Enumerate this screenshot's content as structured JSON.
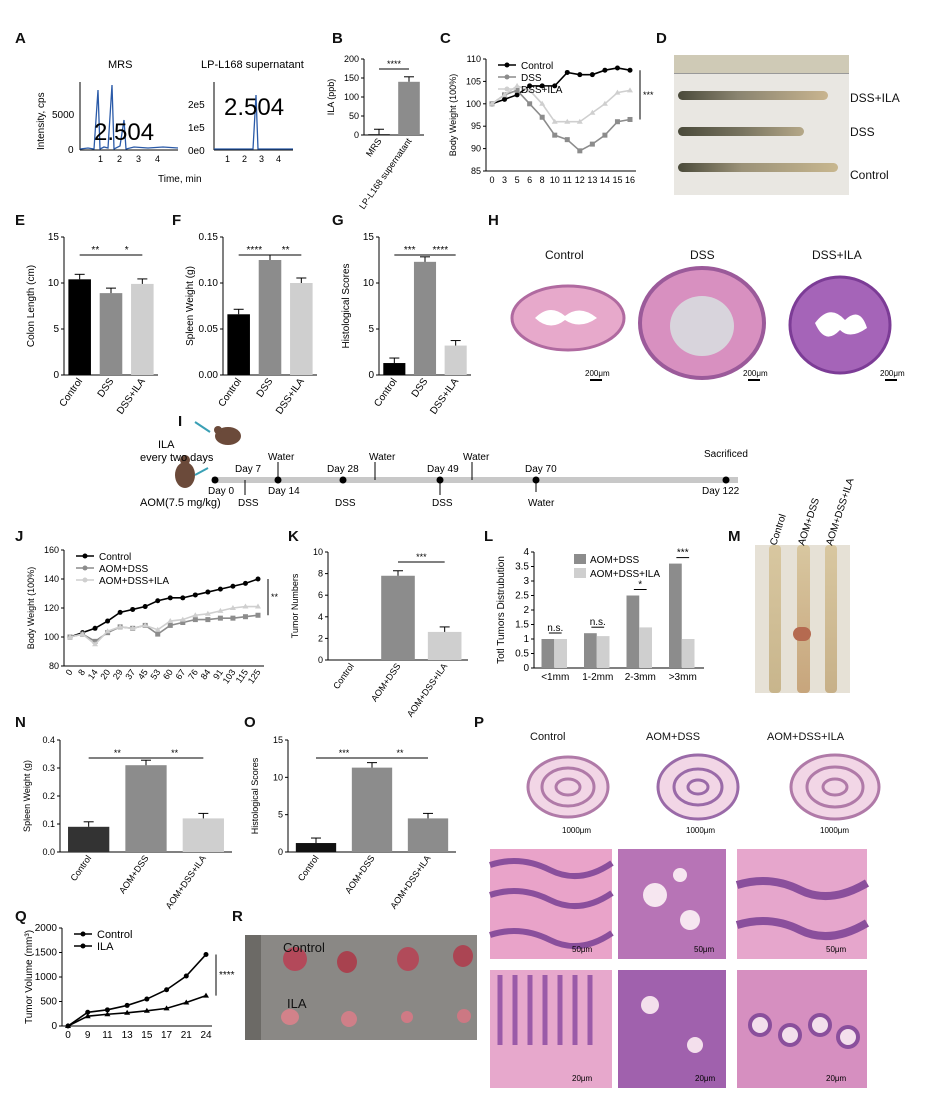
{
  "labels": {
    "A": "A",
    "B": "B",
    "C": "C",
    "D": "D",
    "E": "E",
    "F": "F",
    "G": "G",
    "H": "H",
    "I": "I",
    "J": "J",
    "K": "K",
    "L": "L",
    "M": "M",
    "N": "N",
    "O": "O",
    "P": "P",
    "Q": "Q",
    "R": "R"
  },
  "colors": {
    "black": "#000000",
    "darkgray": "#8c8c8c",
    "lightgray": "#cfcfcf",
    "he_pink": "#e8a6c8",
    "he_purple": "#8a4fa0"
  },
  "panelA": {
    "left_title": "MRS",
    "right_title": "LP-L168 supernatant",
    "ylabel": "Intensity, cps",
    "xlabel": "Time, min",
    "peak_text": "2.504",
    "left_yticks": [
      "5000",
      "0"
    ],
    "right_yticks": [
      "2e5",
      "1e5",
      "0e0"
    ],
    "xticks": [
      "1",
      "2",
      "3",
      "4"
    ]
  },
  "chart_data": [
    {
      "id": "B",
      "type": "bar",
      "ylabel": "ILA (ppb)",
      "categories": [
        "MRS",
        "LP-L168 supernatant"
      ],
      "values": [
        2,
        140
      ],
      "ylim": [
        0,
        200
      ],
      "yticks": [
        "0",
        "50",
        "100",
        "150",
        "200"
      ],
      "sig": "****"
    },
    {
      "id": "C",
      "type": "line",
      "ylabel": "Body Weight (100%)",
      "x": [
        "0",
        "3",
        "5",
        "6",
        "8",
        "10",
        "11",
        "12",
        "13",
        "14",
        "15",
        "16"
      ],
      "ylim": [
        85,
        110
      ],
      "yticks": [
        "85",
        "90",
        "95",
        "100",
        "105",
        "110"
      ],
      "series": [
        {
          "name": "Control",
          "values": [
            100,
            101,
            102,
            104,
            104,
            104,
            107,
            106.5,
            106.5,
            107.5,
            108,
            107.5
          ]
        },
        {
          "name": "DSS",
          "values": [
            100,
            102,
            103,
            100,
            97,
            93,
            92,
            89.5,
            91,
            93,
            96,
            96.5
          ]
        },
        {
          "name": "DSS+ILA",
          "values": [
            100,
            102,
            104,
            103,
            100,
            96,
            96,
            96,
            98,
            100,
            102.5,
            103
          ]
        }
      ],
      "sig": "***"
    },
    {
      "id": "E",
      "type": "bar",
      "ylabel": "Colon Length (cm)",
      "categories": [
        "Control",
        "DSS",
        "DSS+ILA"
      ],
      "values": [
        10.4,
        8.9,
        9.9
      ],
      "ylim": [
        0,
        15
      ],
      "yticks": [
        "0",
        "5",
        "10",
        "15"
      ],
      "sigs": [
        "**",
        "*"
      ]
    },
    {
      "id": "F",
      "type": "bar",
      "ylabel": "Spleen Weight (g)",
      "categories": [
        "Control",
        "DSS",
        "DSS+ILA"
      ],
      "values": [
        0.066,
        0.125,
        0.1
      ],
      "ylim": [
        0,
        0.15
      ],
      "yticks": [
        "0.00",
        "0.05",
        "0.10",
        "0.15"
      ],
      "sigs": [
        "****",
        "**"
      ]
    },
    {
      "id": "G",
      "type": "bar",
      "ylabel": "Histological Scores",
      "categories": [
        "Control",
        "DSS",
        "DSS+ILA"
      ],
      "values": [
        1.3,
        12.3,
        3.2
      ],
      "ylim": [
        0,
        15
      ],
      "yticks": [
        "0",
        "5",
        "10",
        "15"
      ],
      "sigs": [
        "***",
        "****"
      ]
    },
    {
      "id": "J",
      "type": "line",
      "ylabel": "Body Weight (100%)",
      "x": [
        "0",
        "8",
        "14",
        "20",
        "29",
        "37",
        "45",
        "53",
        "60",
        "67",
        "76",
        "84",
        "91",
        "103",
        "115",
        "125"
      ],
      "ylim": [
        80,
        160
      ],
      "yticks": [
        "80",
        "100",
        "120",
        "140",
        "160"
      ],
      "series": [
        {
          "name": "Control",
          "values": [
            100,
            103,
            106,
            111,
            117,
            119,
            121,
            125,
            127,
            127,
            129,
            131,
            133,
            135,
            137,
            140
          ]
        },
        {
          "name": "AOM+DSS",
          "values": [
            100,
            102,
            97,
            103,
            107,
            106,
            108,
            102,
            108,
            110,
            112,
            112,
            113,
            113,
            114,
            115
          ]
        },
        {
          "name": "AOM+DSS+ILA",
          "values": [
            100,
            102,
            95,
            104,
            107,
            106,
            108,
            105,
            111,
            112,
            115,
            116,
            118,
            120,
            121,
            121
          ]
        }
      ],
      "sig": "**"
    },
    {
      "id": "K",
      "type": "bar",
      "ylabel": "Tumor Numbers",
      "categories": [
        "Control",
        "AOM+DSS",
        "AOM+DSS+ILA"
      ],
      "values": [
        0,
        7.8,
        2.6
      ],
      "ylim": [
        0,
        10
      ],
      "yticks": [
        "0",
        "2",
        "4",
        "6",
        "8",
        "10"
      ],
      "sig": "***"
    },
    {
      "id": "L",
      "type": "bar",
      "ylabel": "Totl Tumors Distrubution",
      "categories": [
        "<1mm",
        "1-2mm",
        "2-3mm",
        ">3mm"
      ],
      "ylim": [
        0,
        4
      ],
      "yticks": [
        "0",
        "0.5",
        "1",
        "1.5",
        "2",
        "2.5",
        "3",
        "3.5",
        "4"
      ],
      "series": [
        {
          "name": "AOM+DSS",
          "values": [
            1.0,
            1.2,
            2.5,
            3.6
          ]
        },
        {
          "name": "AOM+DSS+ILA",
          "values": [
            1.0,
            1.1,
            1.4,
            1.0
          ]
        }
      ],
      "sigs": [
        "n.s.",
        "n.s.",
        "*",
        "***"
      ]
    },
    {
      "id": "N",
      "type": "bar",
      "ylabel": "Spleen Weight (g)",
      "categories": [
        "Control",
        "AOM+DSS",
        "AOM+DSS+ILA"
      ],
      "values": [
        0.09,
        0.31,
        0.12
      ],
      "ylim": [
        0,
        0.4
      ],
      "yticks": [
        "0.0",
        "0.1",
        "0.2",
        "0.3",
        "0.4"
      ],
      "sigs": [
        "**",
        "**"
      ]
    },
    {
      "id": "O",
      "type": "bar",
      "ylabel": "Histological Scores",
      "categories": [
        "Control",
        "AOM+DSS",
        "AOM+DSS+ILA"
      ],
      "values": [
        1.2,
        11.3,
        4.5
      ],
      "ylim": [
        0,
        15
      ],
      "yticks": [
        "0",
        "5",
        "10",
        "15"
      ],
      "sigs": [
        "***",
        "**"
      ]
    },
    {
      "id": "Q",
      "type": "line",
      "ylabel": "Tumor Volume (mm³)",
      "x": [
        "0",
        "9",
        "11",
        "13",
        "15",
        "17",
        "21",
        "24"
      ],
      "ylim": [
        0,
        2000
      ],
      "yticks": [
        "0",
        "500",
        "1000",
        "1500",
        "2000"
      ],
      "series": [
        {
          "name": "Control",
          "values": [
            0,
            280,
            330,
            420,
            550,
            740,
            1020,
            1460
          ]
        },
        {
          "name": "ILA",
          "values": [
            0,
            200,
            240,
            270,
            310,
            360,
            480,
            620
          ]
        }
      ],
      "sig": "****"
    }
  ],
  "panelD": {
    "labels": [
      "DSS+ILA",
      "DSS",
      "Control"
    ]
  },
  "panelH": {
    "titles": [
      "Control",
      "DSS",
      "DSS+ILA"
    ],
    "scale": "200μm"
  },
  "panelI": {
    "left_text": [
      "ILA",
      "every two days"
    ],
    "aom_text": "AOM(7.5 mg/kg)",
    "above": [
      "Day 7",
      "Water",
      "Day 28",
      "Water",
      "Day 49",
      "Water",
      "Day 70",
      "Sacrificed"
    ],
    "below": [
      "Day 0",
      "DSS",
      "Day 14",
      "DSS",
      "DSS",
      "Water",
      "Day 122"
    ]
  },
  "panelM": {
    "labels": [
      "Control",
      "AOM+DSS",
      "AOM+DSS+ILA"
    ]
  },
  "panelP": {
    "titles": [
      "Control",
      "AOM+DSS",
      "AOM+DSS+ILA"
    ],
    "scale_low": "1000μm",
    "scale_mid": "50μm",
    "scale_high": "20μm"
  },
  "panelR": {
    "labels": [
      "Control",
      "ILA"
    ]
  }
}
